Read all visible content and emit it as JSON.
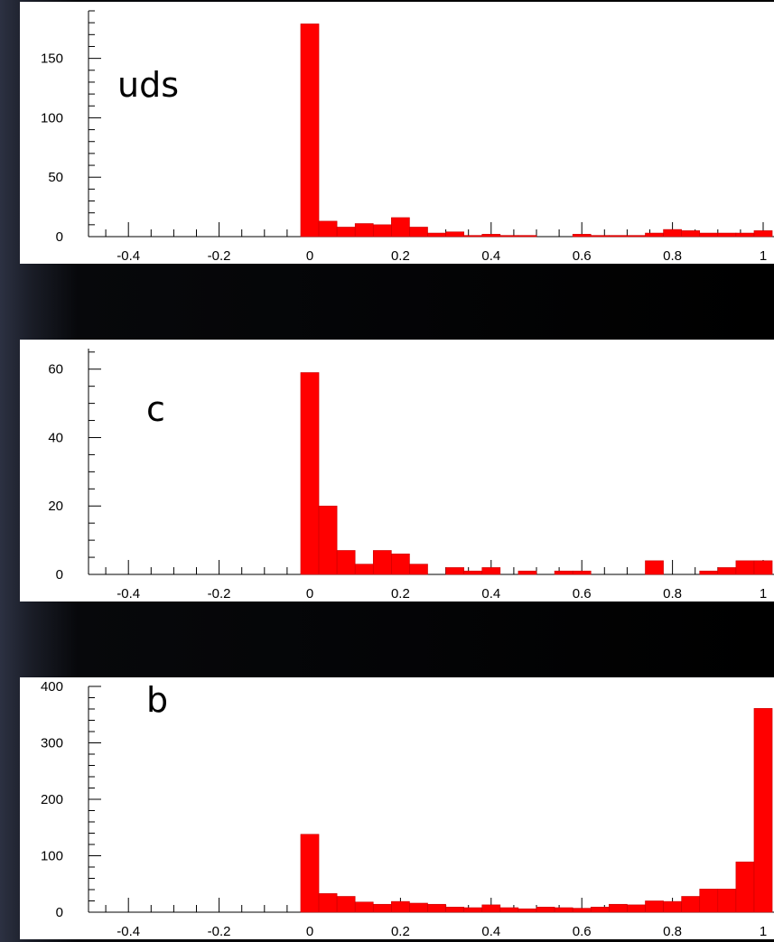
{
  "chart_data": [
    {
      "type": "bar",
      "label": "uds",
      "xlim": [
        -0.5,
        1.02
      ],
      "ylim": [
        0,
        190
      ],
      "xticks": [
        "-0.4",
        "-0.2",
        "0",
        "0.2",
        "0.4",
        "0.6",
        "0.8",
        "1"
      ],
      "yticks": [
        "0",
        "50",
        "100",
        "150"
      ],
      "bin_width": 0.04,
      "bins": [
        {
          "x": -0.02,
          "y": 179
        },
        {
          "x": 0.02,
          "y": 13
        },
        {
          "x": 0.06,
          "y": 8
        },
        {
          "x": 0.1,
          "y": 11
        },
        {
          "x": 0.14,
          "y": 10
        },
        {
          "x": 0.18,
          "y": 16
        },
        {
          "x": 0.22,
          "y": 8
        },
        {
          "x": 0.26,
          "y": 3
        },
        {
          "x": 0.3,
          "y": 4
        },
        {
          "x": 0.34,
          "y": 1
        },
        {
          "x": 0.38,
          "y": 2
        },
        {
          "x": 0.42,
          "y": 1
        },
        {
          "x": 0.46,
          "y": 1
        },
        {
          "x": 0.5,
          "y": 0
        },
        {
          "x": 0.54,
          "y": 0
        },
        {
          "x": 0.58,
          "y": 2
        },
        {
          "x": 0.62,
          "y": 1
        },
        {
          "x": 0.66,
          "y": 1
        },
        {
          "x": 0.7,
          "y": 1
        },
        {
          "x": 0.74,
          "y": 3
        },
        {
          "x": 0.78,
          "y": 6
        },
        {
          "x": 0.82,
          "y": 5
        },
        {
          "x": 0.86,
          "y": 3
        },
        {
          "x": 0.9,
          "y": 3
        },
        {
          "x": 0.94,
          "y": 3
        },
        {
          "x": 0.98,
          "y": 5
        }
      ]
    },
    {
      "type": "bar",
      "label": "c",
      "xlim": [
        -0.5,
        1.02
      ],
      "ylim": [
        0,
        66
      ],
      "xticks": [
        "-0.4",
        "-0.2",
        "0",
        "0.2",
        "0.4",
        "0.6",
        "0.8",
        "1"
      ],
      "yticks": [
        "0",
        "20",
        "40",
        "60"
      ],
      "bin_width": 0.04,
      "bins": [
        {
          "x": -0.02,
          "y": 59
        },
        {
          "x": 0.02,
          "y": 20
        },
        {
          "x": 0.06,
          "y": 7
        },
        {
          "x": 0.1,
          "y": 3
        },
        {
          "x": 0.14,
          "y": 7
        },
        {
          "x": 0.18,
          "y": 6
        },
        {
          "x": 0.22,
          "y": 3
        },
        {
          "x": 0.26,
          "y": 0
        },
        {
          "x": 0.3,
          "y": 2
        },
        {
          "x": 0.34,
          "y": 1
        },
        {
          "x": 0.38,
          "y": 2
        },
        {
          "x": 0.42,
          "y": 0
        },
        {
          "x": 0.46,
          "y": 1
        },
        {
          "x": 0.5,
          "y": 0
        },
        {
          "x": 0.54,
          "y": 1
        },
        {
          "x": 0.58,
          "y": 1
        },
        {
          "x": 0.62,
          "y": 0
        },
        {
          "x": 0.66,
          "y": 0
        },
        {
          "x": 0.7,
          "y": 0
        },
        {
          "x": 0.74,
          "y": 4
        },
        {
          "x": 0.78,
          "y": 0
        },
        {
          "x": 0.82,
          "y": 0
        },
        {
          "x": 0.86,
          "y": 1
        },
        {
          "x": 0.9,
          "y": 2
        },
        {
          "x": 0.94,
          "y": 4
        },
        {
          "x": 0.98,
          "y": 4
        }
      ]
    },
    {
      "type": "bar",
      "label": "b",
      "xlim": [
        -0.5,
        1.02
      ],
      "ylim": [
        0,
        400
      ],
      "xticks": [
        "-0.4",
        "-0.2",
        "0",
        "0.2",
        "0.4",
        "0.6",
        "0.8",
        "1"
      ],
      "yticks": [
        "0",
        "100",
        "200",
        "300",
        "400"
      ],
      "bin_width": 0.04,
      "bins": [
        {
          "x": -0.02,
          "y": 138
        },
        {
          "x": 0.02,
          "y": 33
        },
        {
          "x": 0.06,
          "y": 28
        },
        {
          "x": 0.1,
          "y": 18
        },
        {
          "x": 0.14,
          "y": 14
        },
        {
          "x": 0.18,
          "y": 19
        },
        {
          "x": 0.22,
          "y": 16
        },
        {
          "x": 0.26,
          "y": 14
        },
        {
          "x": 0.3,
          "y": 9
        },
        {
          "x": 0.34,
          "y": 8
        },
        {
          "x": 0.38,
          "y": 13
        },
        {
          "x": 0.42,
          "y": 8
        },
        {
          "x": 0.46,
          "y": 6
        },
        {
          "x": 0.5,
          "y": 9
        },
        {
          "x": 0.54,
          "y": 8
        },
        {
          "x": 0.58,
          "y": 7
        },
        {
          "x": 0.62,
          "y": 9
        },
        {
          "x": 0.66,
          "y": 14
        },
        {
          "x": 0.7,
          "y": 13
        },
        {
          "x": 0.74,
          "y": 20
        },
        {
          "x": 0.78,
          "y": 19
        },
        {
          "x": 0.82,
          "y": 28
        },
        {
          "x": 0.86,
          "y": 41
        },
        {
          "x": 0.9,
          "y": 41
        },
        {
          "x": 0.94,
          "y": 89
        },
        {
          "x": 0.98,
          "y": 361
        }
      ]
    }
  ]
}
